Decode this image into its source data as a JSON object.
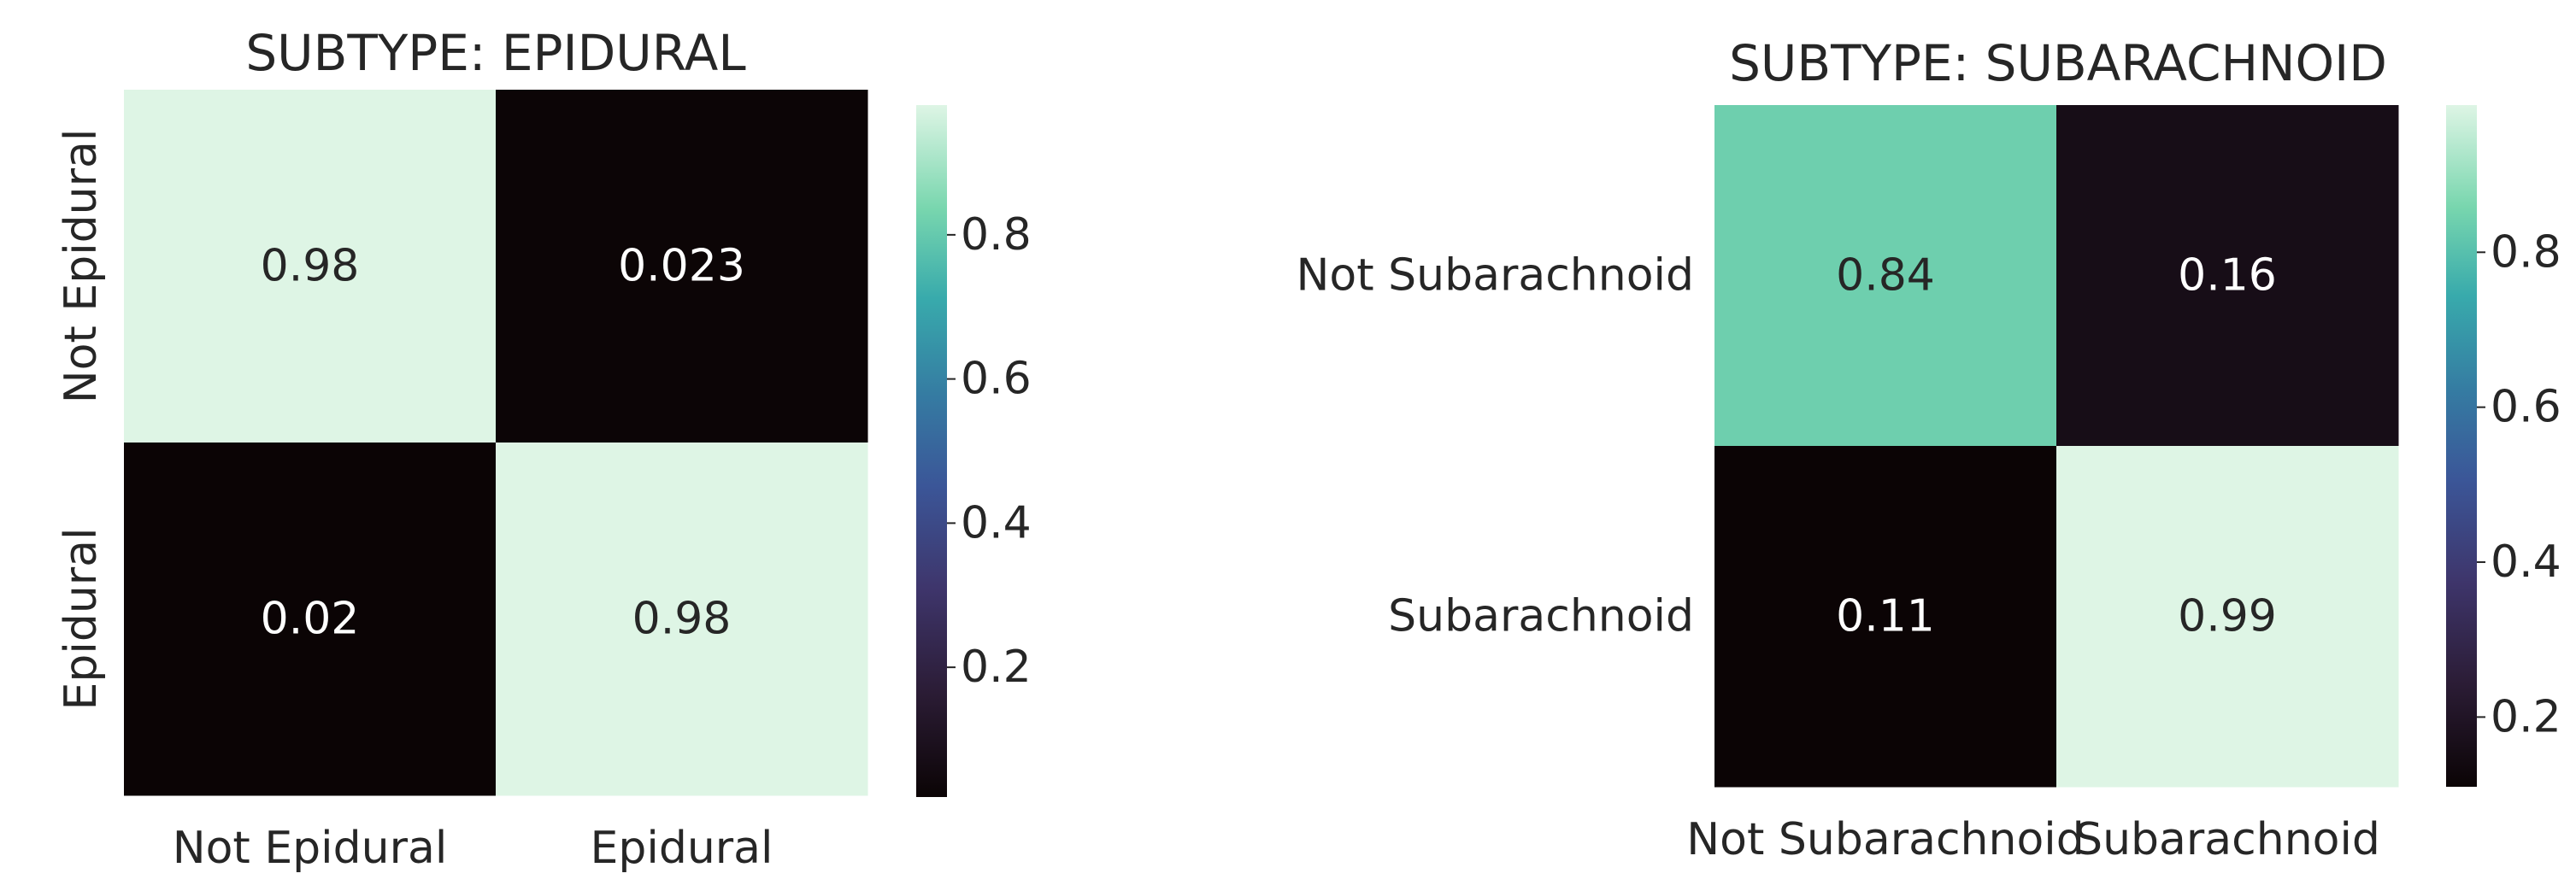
{
  "chart_data": [
    {
      "type": "heatmap",
      "title": "SUBTYPE: EPIDURAL",
      "row_labels": [
        "Not Epidural",
        "Epidural"
      ],
      "col_labels": [
        "Not Epidural",
        "Epidural"
      ],
      "row_label_orientation": "vertical",
      "values": [
        [
          0.98,
          0.023
        ],
        [
          0.02,
          0.98
        ]
      ],
      "value_labels": [
        [
          "0.98",
          "0.023"
        ],
        [
          "0.02",
          "0.98"
        ]
      ],
      "colorbar": {
        "ticks": [
          0.2,
          0.4,
          0.6,
          0.8
        ],
        "tick_labels": [
          "0.2",
          "0.4",
          "0.6",
          "0.8"
        ],
        "range": [
          0.02,
          0.98
        ]
      },
      "colormap": "mako"
    },
    {
      "type": "heatmap",
      "title": "SUBTYPE: SUBARACHNOID",
      "row_labels": [
        "Not Subarachnoid",
        "Subarachnoid"
      ],
      "col_labels": [
        "Not Subarachnoid",
        "Subarachnoid"
      ],
      "row_label_orientation": "horizontal",
      "values": [
        [
          0.84,
          0.16
        ],
        [
          0.11,
          0.99
        ]
      ],
      "value_labels": [
        [
          "0.84",
          "0.16"
        ],
        [
          "0.11",
          "0.99"
        ]
      ],
      "colorbar": {
        "ticks": [
          0.2,
          0.4,
          0.6,
          0.8
        ],
        "tick_labels": [
          "0.2",
          "0.4",
          "0.6",
          "0.8"
        ],
        "range": [
          0.11,
          0.99
        ]
      },
      "colormap": "mako"
    }
  ]
}
